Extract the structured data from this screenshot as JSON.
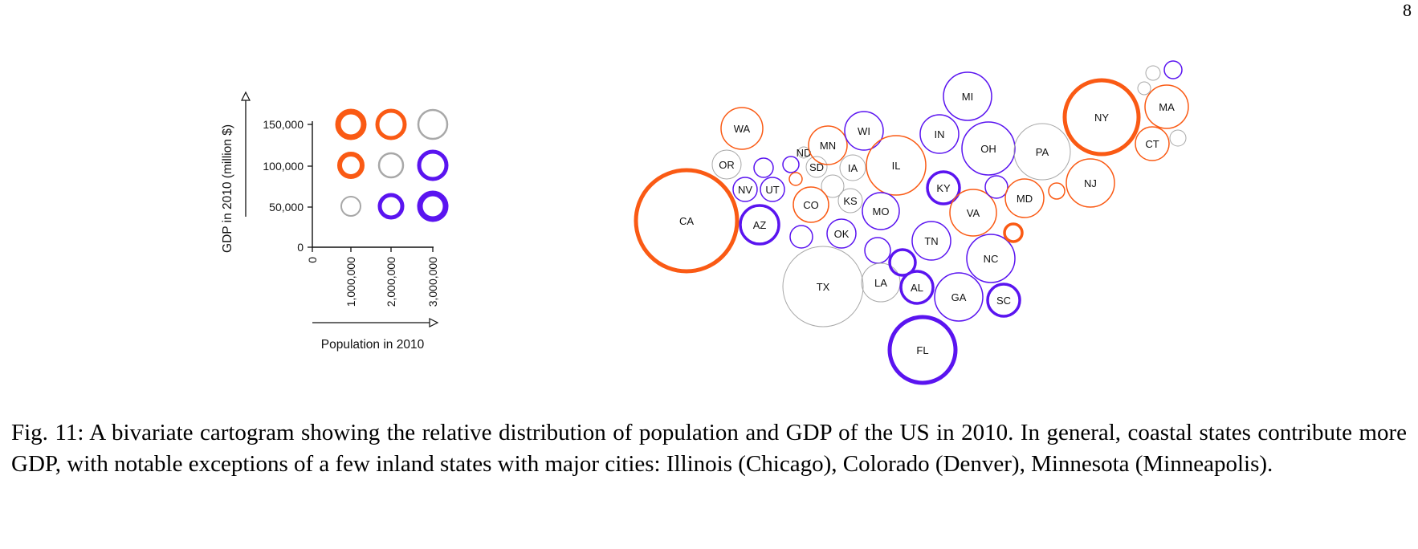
{
  "page": {
    "number": "8"
  },
  "legend": {
    "y_axis_label": "GDP in 2010 (million $)",
    "x_axis_label": "Population in 2010",
    "y_ticks": [
      "0",
      "50,000",
      "100,000",
      "150,000"
    ],
    "x_ticks": [
      "0",
      "1,000,000",
      "2,000,000",
      "3,000,000"
    ]
  },
  "colors": {
    "high_gdp": "#fa5a14",
    "balanced": "#a8a8a8",
    "high_population": "#5a14f0"
  },
  "states": [
    {
      "id": "WA",
      "label": "WA",
      "color": "high_gdp",
      "weight": "normal"
    },
    {
      "id": "OR",
      "label": "OR",
      "color": "balanced",
      "weight": "normal"
    },
    {
      "id": "CA",
      "label": "CA",
      "color": "high_gdp",
      "weight": "bold"
    },
    {
      "id": "NV",
      "label": "NV",
      "color": "high_population",
      "weight": "normal"
    },
    {
      "id": "UT",
      "label": "UT",
      "color": "high_population",
      "weight": "normal"
    },
    {
      "id": "AZ",
      "label": "AZ",
      "color": "high_population",
      "weight": "bold"
    },
    {
      "id": "ID",
      "label": "",
      "color": "high_population",
      "weight": "normal"
    },
    {
      "id": "MT",
      "label": "",
      "color": "high_population",
      "weight": "normal"
    },
    {
      "id": "WY",
      "label": "",
      "color": "high_gdp",
      "weight": "normal"
    },
    {
      "id": "NM",
      "label": "",
      "color": "high_population",
      "weight": "normal"
    },
    {
      "id": "ND",
      "label": "ND",
      "color": "balanced",
      "weight": "normal"
    },
    {
      "id": "SD",
      "label": "SD",
      "color": "balanced",
      "weight": "normal"
    },
    {
      "id": "NE",
      "label": "",
      "color": "balanced",
      "weight": "normal"
    },
    {
      "id": "MN",
      "label": "MN",
      "color": "high_gdp",
      "weight": "normal"
    },
    {
      "id": "IA",
      "label": "IA",
      "color": "balanced",
      "weight": "normal"
    },
    {
      "id": "CO",
      "label": "CO",
      "color": "high_gdp",
      "weight": "normal"
    },
    {
      "id": "KS",
      "label": "KS",
      "color": "balanced",
      "weight": "normal"
    },
    {
      "id": "OK",
      "label": "OK",
      "color": "high_population",
      "weight": "normal"
    },
    {
      "id": "TX",
      "label": "TX",
      "color": "balanced",
      "weight": "normal"
    },
    {
      "id": "WI",
      "label": "WI",
      "color": "high_population",
      "weight": "normal"
    },
    {
      "id": "IL",
      "label": "IL",
      "color": "high_gdp",
      "weight": "normal"
    },
    {
      "id": "MO",
      "label": "MO",
      "color": "high_population",
      "weight": "normal"
    },
    {
      "id": "AR",
      "label": "",
      "color": "high_population",
      "weight": "normal"
    },
    {
      "id": "LA",
      "label": "LA",
      "color": "balanced",
      "weight": "normal"
    },
    {
      "id": "MS",
      "label": "",
      "color": "high_population",
      "weight": "bold"
    },
    {
      "id": "MI",
      "label": "MI",
      "color": "high_population",
      "weight": "normal"
    },
    {
      "id": "IN",
      "label": "IN",
      "color": "high_population",
      "weight": "normal"
    },
    {
      "id": "OH",
      "label": "OH",
      "color": "high_population",
      "weight": "normal"
    },
    {
      "id": "KY",
      "label": "KY",
      "color": "high_population",
      "weight": "bold"
    },
    {
      "id": "TN",
      "label": "TN",
      "color": "high_population",
      "weight": "normal"
    },
    {
      "id": "AL",
      "label": "AL",
      "color": "high_population",
      "weight": "bold"
    },
    {
      "id": "GA",
      "label": "GA",
      "color": "high_population",
      "weight": "normal"
    },
    {
      "id": "FL",
      "label": "FL",
      "color": "high_population",
      "weight": "bold"
    },
    {
      "id": "SC",
      "label": "SC",
      "color": "high_population",
      "weight": "bold"
    },
    {
      "id": "NC",
      "label": "NC",
      "color": "high_population",
      "weight": "normal"
    },
    {
      "id": "VA",
      "label": "VA",
      "color": "high_gdp",
      "weight": "normal"
    },
    {
      "id": "WV",
      "label": "",
      "color": "high_population",
      "weight": "normal"
    },
    {
      "id": "MD",
      "label": "MD",
      "color": "high_gdp",
      "weight": "normal"
    },
    {
      "id": "DE",
      "label": "",
      "color": "high_gdp",
      "weight": "normal"
    },
    {
      "id": "DC",
      "label": "",
      "color": "high_gdp",
      "weight": "bold"
    },
    {
      "id": "PA",
      "label": "PA",
      "color": "balanced",
      "weight": "normal"
    },
    {
      "id": "NJ",
      "label": "NJ",
      "color": "high_gdp",
      "weight": "normal"
    },
    {
      "id": "NY",
      "label": "NY",
      "color": "high_gdp",
      "weight": "bold"
    },
    {
      "id": "CT",
      "label": "CT",
      "color": "high_gdp",
      "weight": "normal"
    },
    {
      "id": "MA",
      "label": "MA",
      "color": "high_gdp",
      "weight": "normal"
    },
    {
      "id": "RI",
      "label": "",
      "color": "balanced",
      "weight": "normal"
    },
    {
      "id": "VT",
      "label": "",
      "color": "balanced",
      "weight": "normal"
    },
    {
      "id": "NH",
      "label": "",
      "color": "balanced",
      "weight": "normal"
    },
    {
      "id": "ME",
      "label": "",
      "color": "high_population",
      "weight": "normal"
    }
  ],
  "caption": "Fig. 11: A bivariate cartogram showing the relative distribution of population and GDP of the US in 2010. In general, coastal states contribute more GDP, with notable exceptions of a few inland states with major cities: Illinois (Chicago), Colorado (Denver), Minnesota (Minneapolis)."
}
